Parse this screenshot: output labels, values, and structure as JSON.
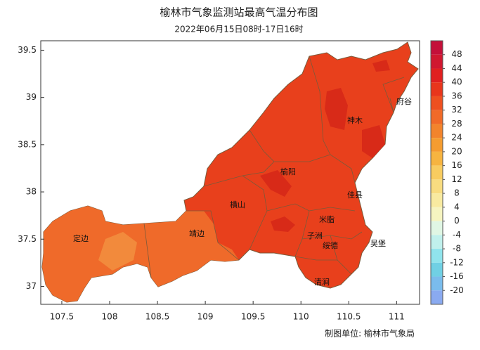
{
  "title": "榆林市气象监测站最高气温分布图",
  "subtitle": "2022年06月15日08时-17日16时",
  "axes": {
    "x_ticks": [
      107.5,
      108,
      108.5,
      109,
      109.5,
      110,
      110.5,
      111
    ],
    "xlim": [
      107.28,
      111.24
    ],
    "y_ticks": [
      37,
      37.5,
      38,
      38.5,
      39,
      39.5
    ],
    "ylim": [
      36.81,
      39.6
    ]
  },
  "places": [
    "府谷",
    "神木",
    "榆阳",
    "佳县",
    "横山",
    "米脂",
    "定边",
    "靖边",
    "子洲",
    "绥德",
    "吴堡",
    "清涧"
  ],
  "colorbar": {
    "ticks": [
      48,
      44,
      40,
      36,
      32,
      28,
      24,
      20,
      16,
      12,
      8,
      4,
      0,
      -4,
      -8,
      -12,
      -16,
      -20
    ],
    "colors": [
      "#c4103a",
      "#d01830",
      "#e02020",
      "#e8361c",
      "#ee5020",
      "#f06a28",
      "#f2842c",
      "#f49c30",
      "#f6b440",
      "#f8cc60",
      "#f8dc80",
      "#f8eaa0",
      "#f6f4c0",
      "#e0f6e4",
      "#c0f0ec",
      "#90e4ec",
      "#70d0e4",
      "#7abcec",
      "#8aaaf0"
    ]
  },
  "credit": "制图单位: 榆林市气象局"
}
